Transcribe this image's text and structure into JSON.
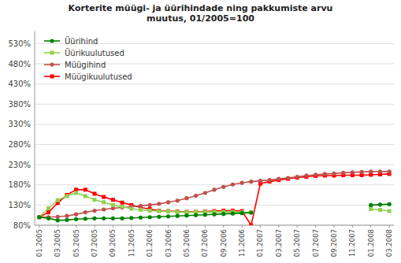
{
  "chart_data": {
    "type": "line",
    "title": "Korterite müügi- ja üürihindade ning pakkumiste arvu\nmuutus, 01/2005=100",
    "categories": [
      "01.2005",
      null,
      "03.2005",
      null,
      "05.2005",
      null,
      "07.2005",
      null,
      "09.2005",
      null,
      "11.2005",
      null,
      "01.2006",
      null,
      "03.2006",
      null,
      "05.2006",
      null,
      "07.2006",
      null,
      "09.2006",
      null,
      "11.2006",
      null,
      "01.2007",
      null,
      "03.2007",
      null,
      "05.2007",
      null,
      "07.2007",
      null,
      "09.2007",
      null,
      "11.2007",
      null,
      "01.2008",
      null,
      "03.2008"
    ],
    "series": [
      {
        "name": "Üürihind",
        "color": "#008000",
        "marker": "circle",
        "values": [
          100,
          97,
          92,
          93,
          95,
          96,
          97,
          97,
          97,
          97,
          98,
          99,
          100,
          101,
          102,
          103,
          104,
          105,
          106,
          107,
          108,
          109,
          110,
          111,
          null,
          null,
          null,
          null,
          null,
          null,
          null,
          null,
          null,
          null,
          null,
          null,
          130,
          131,
          132
        ]
      },
      {
        "name": "Üürikuulutused",
        "color": "#92d050",
        "marker": "square",
        "values": [
          100,
          122,
          142,
          152,
          160,
          152,
          143,
          137,
          130,
          126,
          121,
          118,
          116,
          115,
          114,
          113,
          112,
          112,
          113,
          113,
          113,
          113,
          112,
          112,
          null,
          null,
          null,
          null,
          null,
          null,
          null,
          null,
          null,
          null,
          null,
          null,
          120,
          118,
          115
        ]
      },
      {
        "name": "Müügihind",
        "color": "#c0504d",
        "marker": "circle",
        "values": [
          100,
          100,
          101,
          103,
          107,
          112,
          116,
          119,
          122,
          124,
          126,
          128,
          130,
          133,
          137,
          141,
          147,
          153,
          160,
          168,
          175,
          181,
          185,
          188,
          190,
          192,
          195,
          197,
          200,
          203,
          205,
          207,
          208,
          210,
          211,
          212,
          213,
          213,
          213
        ]
      },
      {
        "name": "Müügikuulutused",
        "color": "#ff0000",
        "marker": "square",
        "values": [
          100,
          112,
          135,
          155,
          168,
          168,
          158,
          150,
          143,
          136,
          130,
          124,
          120,
          116,
          115,
          114,
          113,
          113,
          114,
          115,
          116,
          116,
          115,
          80,
          183,
          188,
          192,
          195,
          198,
          200,
          202,
          203,
          203,
          204,
          204,
          204,
          205,
          206,
          207
        ]
      }
    ],
    "ylim": [
      80,
      560
    ],
    "yticks": [
      {
        "value": 80,
        "label": "80%"
      },
      {
        "value": 130,
        "label": "130%"
      },
      {
        "value": 180,
        "label": "180%"
      },
      {
        "value": 230,
        "label": "230%"
      },
      {
        "value": 280,
        "label": "280%"
      },
      {
        "value": 330,
        "label": "330%"
      },
      {
        "value": 380,
        "label": "380%"
      },
      {
        "value": 430,
        "label": "430%"
      },
      {
        "value": 480,
        "label": "480%"
      },
      {
        "value": 530,
        "label": "530%"
      }
    ],
    "grid": true,
    "legend": "upper left"
  }
}
